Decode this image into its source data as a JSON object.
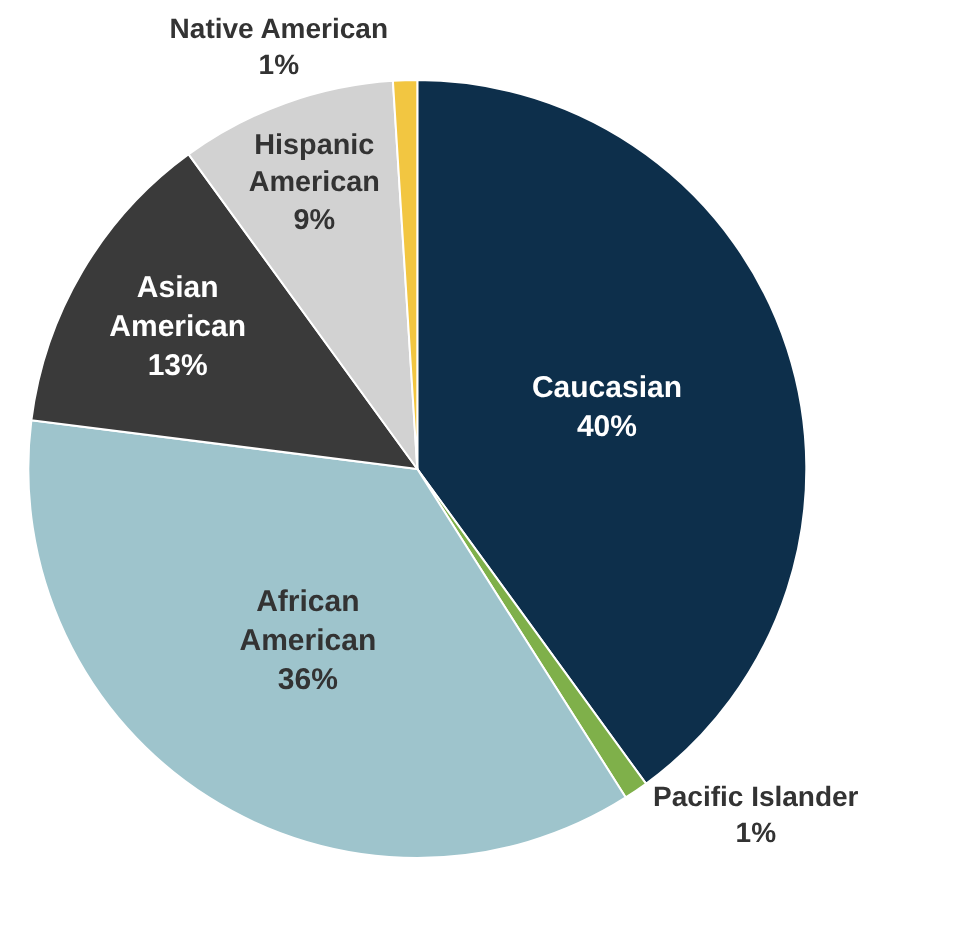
{
  "chart_data": {
    "type": "pie",
    "categories": [
      "Caucasian",
      "Pacific Islander",
      "African American",
      "Asian American",
      "Hispanic American",
      "Native American"
    ],
    "values": [
      40,
      1,
      36,
      13,
      9,
      1
    ],
    "value_labels": [
      "40%",
      "1%",
      "36%",
      "13%",
      "9%",
      "1%"
    ],
    "colors": [
      "#0d2f4b",
      "#7fb04a",
      "#9ec4cc",
      "#3a3a3a",
      "#d2d2d2",
      "#f2c641"
    ],
    "legend": false
  }
}
